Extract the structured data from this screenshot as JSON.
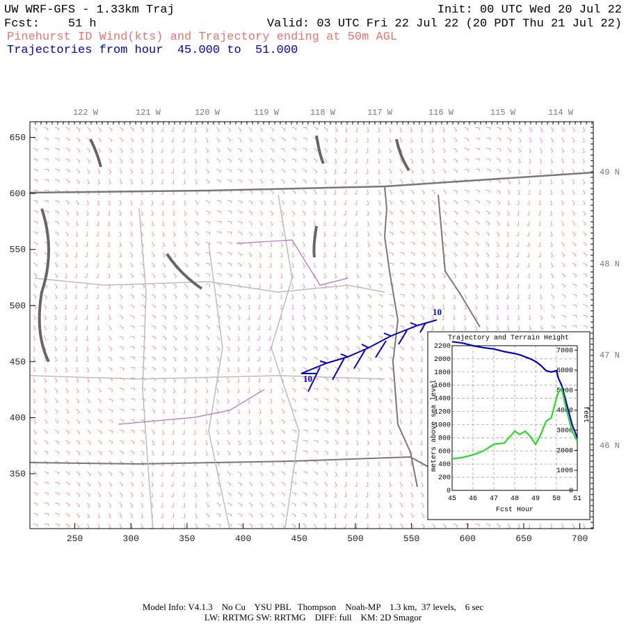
{
  "header": {
    "title": "UW WRF-GFS - 1.33km Traj",
    "init": "Init: 00 UTC Wed 20 Jul 22",
    "fcst": "Fcst:    51 h",
    "valid": "Valid: 03 UTC Fri 22 Jul 22 (20 PDT Thu 21 Jul 22)",
    "field": "Pinehurst ID Wind(kts) and Trajectory ending at 50m AGL",
    "hours": "Trajectories from hour  45.000 to  51.000"
  },
  "map": {
    "xlim": [
      210,
      712
    ],
    "ylim": [
      301,
      664
    ],
    "xticks": [
      250,
      300,
      350,
      400,
      450,
      500,
      550,
      600,
      650,
      700
    ],
    "yticks": [
      350,
      400,
      450,
      500,
      550,
      600,
      650
    ],
    "lon_labels": [
      "122 W",
      "121 W",
      "120 W",
      "119 W",
      "118 W",
      "117 W",
      "116 W",
      "115 W",
      "114 W"
    ],
    "lat_labels": [
      "49 N",
      "48 N",
      "47 N",
      "46 N"
    ],
    "trajectory_labels": [
      "10",
      "10"
    ]
  },
  "chart_data": {
    "type": "line",
    "title": "Trajectory and Terrain Height",
    "xlabel": "Fcst Hour",
    "ylabel": "meters above sea level",
    "y2label": "feet",
    "x": [
      45,
      45.5,
      46,
      46.5,
      47,
      47.5,
      48,
      48.25,
      48.5,
      48.75,
      49,
      49.25,
      49.5,
      49.75,
      50,
      50.1,
      50.25,
      50.5,
      50.75,
      51
    ],
    "xlim": [
      45,
      51
    ],
    "xticks": [
      45,
      46,
      47,
      48,
      49,
      50,
      51
    ],
    "ylim": [
      0,
      2200
    ],
    "yticks": [
      0,
      200,
      400,
      600,
      800,
      1000,
      1200,
      1400,
      1600,
      1800,
      2000,
      2200
    ],
    "y2lim": [
      0,
      7218
    ],
    "y2ticks": [
      0,
      1000,
      2000,
      3000,
      4000,
      5000,
      6000,
      7000
    ],
    "grid": true,
    "series": [
      {
        "name": "Trajectory",
        "color": "#0000cc",
        "values": [
          2260,
          2240,
          2200,
          2170,
          2150,
          2110,
          2080,
          2060,
          2030,
          2000,
          1960,
          1900,
          1820,
          1800,
          1820,
          1700,
          1600,
          1300,
          1000,
          800
        ]
      },
      {
        "name": "Terrain",
        "color": "#22dd22",
        "values": [
          480,
          500,
          540,
          600,
          700,
          720,
          900,
          850,
          900,
          820,
          700,
          850,
          1050,
          1100,
          1400,
          1500,
          1550,
          1200,
          900,
          750
        ]
      }
    ]
  },
  "footer": {
    "line1": "Model Info: V4.1.3    No Cu    YSU PBL   Thompson    Noah-MP    1.3 km,  37 levels,    6 sec",
    "line2": "LW: RRTMG SW: RRTMG    DIFF: full    KM: 2D Smagor"
  }
}
